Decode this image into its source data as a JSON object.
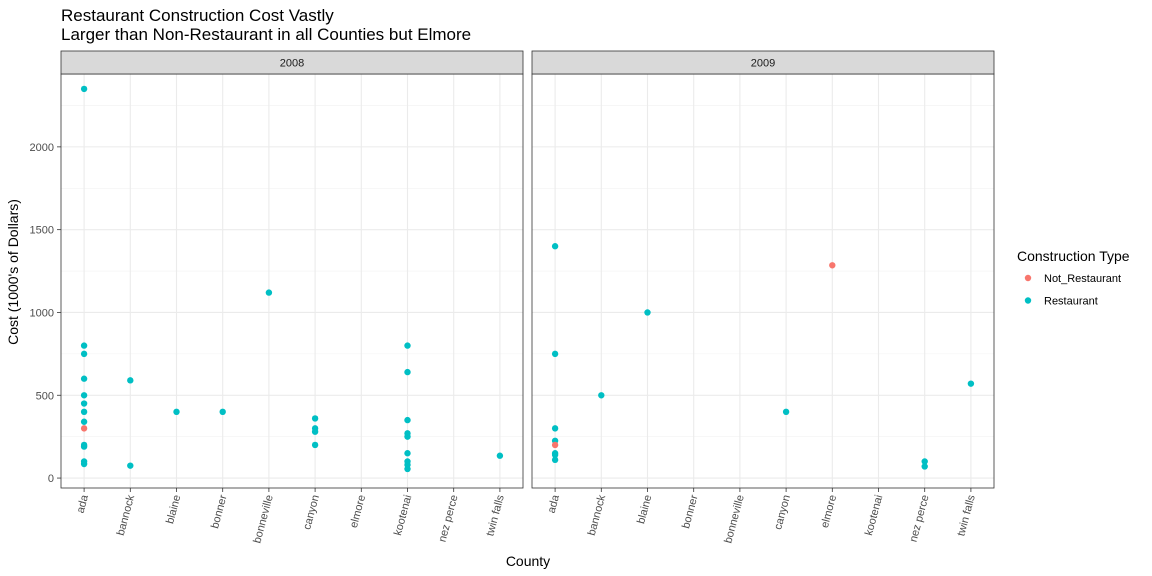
{
  "chart_data": {
    "type": "scatter",
    "title": "Restaurant Construction Cost Vastly",
    "subtitle": "Larger than Non-Restaurant in all Counties but Elmore",
    "xlabel": "County",
    "ylabel": "Cost (1000's of Dollars)",
    "categories": [
      "ada",
      "bannock",
      "blaine",
      "bonner",
      "bonneville",
      "canyon",
      "elmore",
      "kootenai",
      "nez perce",
      "twin falls"
    ],
    "y_ticks": [
      0,
      500,
      1000,
      1500,
      2000
    ],
    "y_tick_labels": [
      "0",
      "500",
      "1000",
      "1500",
      "2000"
    ],
    "ylim": [
      -60,
      2440
    ],
    "grid": true,
    "legend": {
      "title": "Construction Type",
      "position": "right",
      "items": [
        {
          "name": "Not_Restaurant",
          "color": "#F8766D"
        },
        {
          "name": "Restaurant",
          "color": "#00BFC4"
        }
      ]
    },
    "facets": [
      {
        "label": "2008",
        "points": [
          {
            "x": "ada",
            "y": 2350,
            "type": "Restaurant"
          },
          {
            "x": "ada",
            "y": 800,
            "type": "Restaurant"
          },
          {
            "x": "ada",
            "y": 750,
            "type": "Restaurant"
          },
          {
            "x": "ada",
            "y": 600,
            "type": "Restaurant"
          },
          {
            "x": "ada",
            "y": 500,
            "type": "Restaurant"
          },
          {
            "x": "ada",
            "y": 450,
            "type": "Restaurant"
          },
          {
            "x": "ada",
            "y": 400,
            "type": "Restaurant"
          },
          {
            "x": "ada",
            "y": 340,
            "type": "Restaurant"
          },
          {
            "x": "ada",
            "y": 300,
            "type": "Not_Restaurant"
          },
          {
            "x": "ada",
            "y": 200,
            "type": "Restaurant"
          },
          {
            "x": "ada",
            "y": 190,
            "type": "Restaurant"
          },
          {
            "x": "ada",
            "y": 100,
            "type": "Restaurant"
          },
          {
            "x": "ada",
            "y": 85,
            "type": "Restaurant"
          },
          {
            "x": "bannock",
            "y": 590,
            "type": "Restaurant"
          },
          {
            "x": "bannock",
            "y": 75,
            "type": "Restaurant"
          },
          {
            "x": "blaine",
            "y": 400,
            "type": "Restaurant"
          },
          {
            "x": "bonner",
            "y": 400,
            "type": "Restaurant"
          },
          {
            "x": "bonneville",
            "y": 1120,
            "type": "Restaurant"
          },
          {
            "x": "canyon",
            "y": 360,
            "type": "Restaurant"
          },
          {
            "x": "canyon",
            "y": 300,
            "type": "Restaurant"
          },
          {
            "x": "canyon",
            "y": 280,
            "type": "Restaurant"
          },
          {
            "x": "canyon",
            "y": 200,
            "type": "Restaurant"
          },
          {
            "x": "kootenai",
            "y": 800,
            "type": "Restaurant"
          },
          {
            "x": "kootenai",
            "y": 640,
            "type": "Restaurant"
          },
          {
            "x": "kootenai",
            "y": 350,
            "type": "Restaurant"
          },
          {
            "x": "kootenai",
            "y": 270,
            "type": "Restaurant"
          },
          {
            "x": "kootenai",
            "y": 250,
            "type": "Restaurant"
          },
          {
            "x": "kootenai",
            "y": 150,
            "type": "Restaurant"
          },
          {
            "x": "kootenai",
            "y": 100,
            "type": "Restaurant"
          },
          {
            "x": "kootenai",
            "y": 80,
            "type": "Restaurant"
          },
          {
            "x": "kootenai",
            "y": 55,
            "type": "Restaurant"
          },
          {
            "x": "twin falls",
            "y": 135,
            "type": "Restaurant"
          }
        ]
      },
      {
        "label": "2009",
        "points": [
          {
            "x": "ada",
            "y": 1400,
            "type": "Restaurant"
          },
          {
            "x": "ada",
            "y": 750,
            "type": "Restaurant"
          },
          {
            "x": "ada",
            "y": 300,
            "type": "Restaurant"
          },
          {
            "x": "ada",
            "y": 225,
            "type": "Restaurant"
          },
          {
            "x": "ada",
            "y": 200,
            "type": "Not_Restaurant"
          },
          {
            "x": "ada",
            "y": 150,
            "type": "Restaurant"
          },
          {
            "x": "ada",
            "y": 140,
            "type": "Restaurant"
          },
          {
            "x": "ada",
            "y": 110,
            "type": "Restaurant"
          },
          {
            "x": "bannock",
            "y": 500,
            "type": "Restaurant"
          },
          {
            "x": "blaine",
            "y": 1000,
            "type": "Restaurant"
          },
          {
            "x": "canyon",
            "y": 400,
            "type": "Restaurant"
          },
          {
            "x": "elmore",
            "y": 1285,
            "type": "Not_Restaurant"
          },
          {
            "x": "nez perce",
            "y": 100,
            "type": "Restaurant"
          },
          {
            "x": "nez perce",
            "y": 70,
            "type": "Restaurant"
          },
          {
            "x": "twin falls",
            "y": 570,
            "type": "Restaurant"
          }
        ]
      }
    ]
  }
}
